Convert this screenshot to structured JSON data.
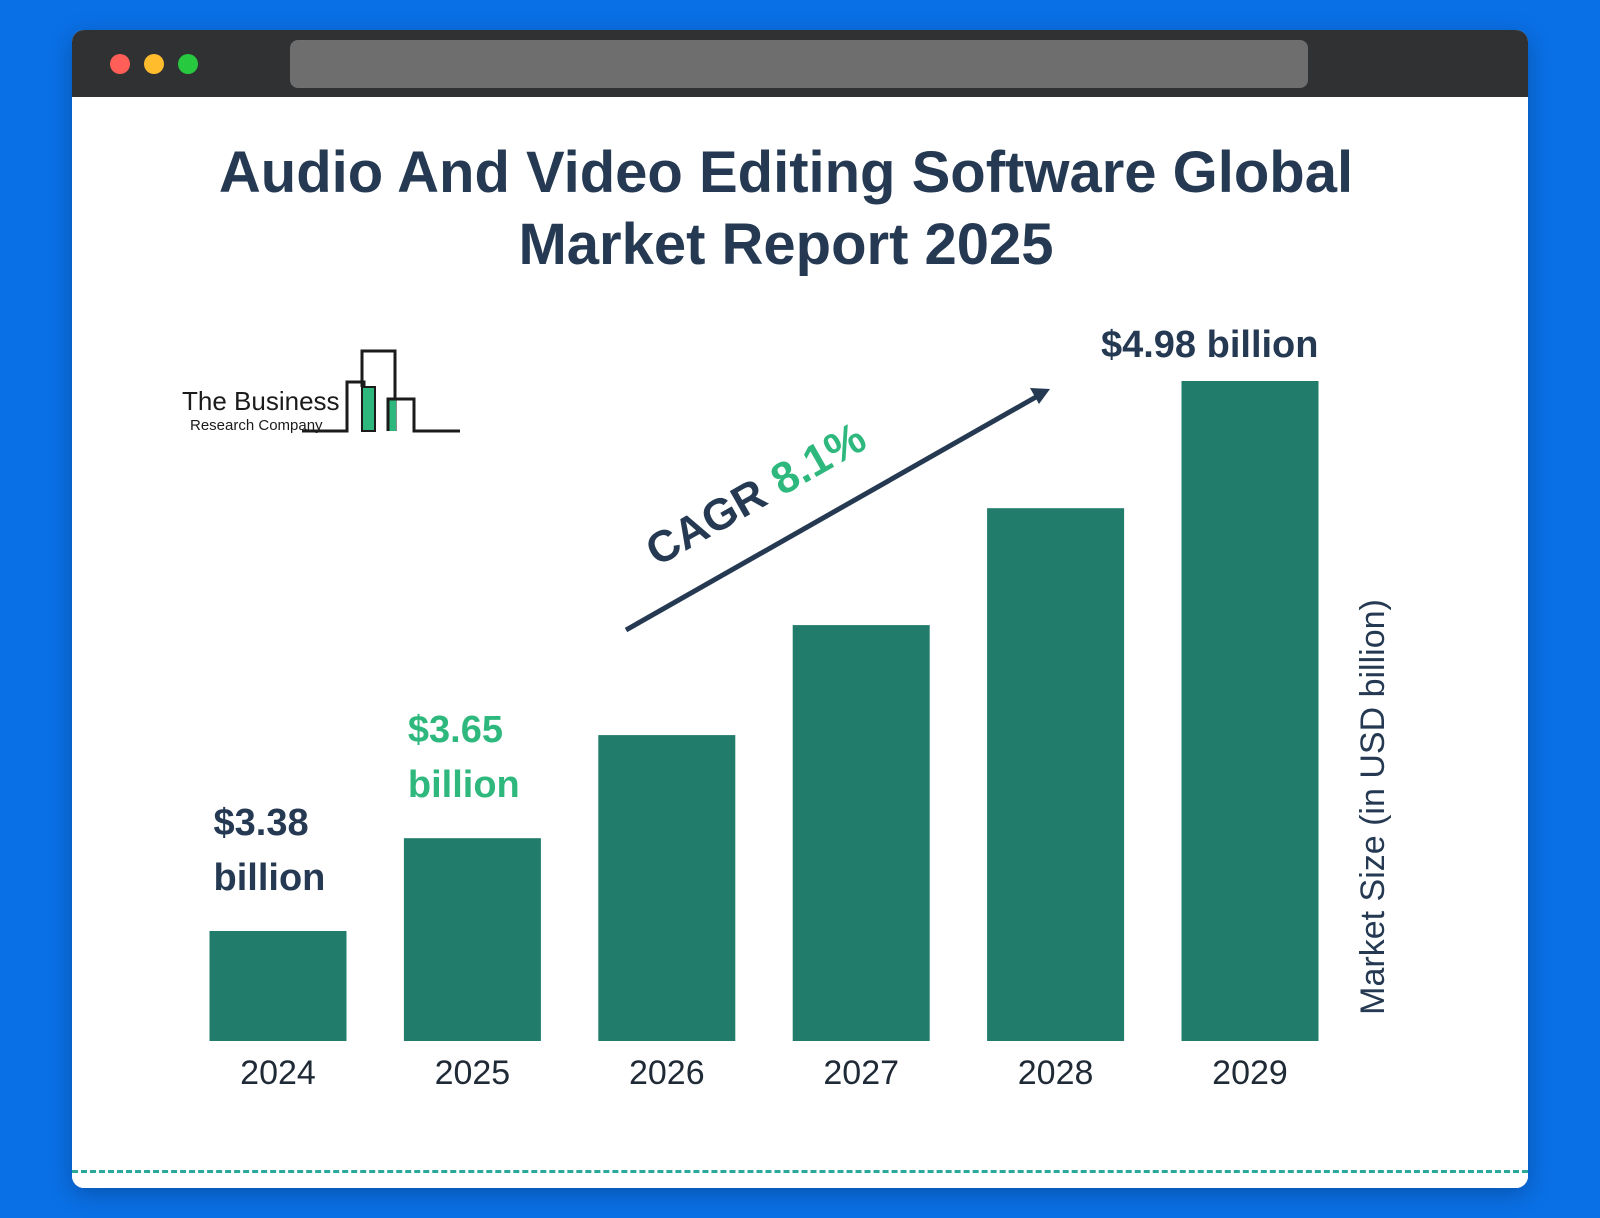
{
  "window": {
    "controls": [
      "close",
      "minimize",
      "maximize"
    ]
  },
  "colors": {
    "background": "#0a70e6",
    "bar": "#217c6c",
    "text_dark": "#253a52",
    "accent_green": "#2eb87d",
    "arrow": "#253a52"
  },
  "logo": {
    "line1": "The Business",
    "line2": "Research Company"
  },
  "cagr": {
    "label": "CAGR",
    "value": "8.1%"
  },
  "chart_data": {
    "type": "bar",
    "title": "Audio And Video Editing Software Global Market Report 2025",
    "title_lines": [
      "Audio And Video Editing Software Global",
      "Market Report 2025"
    ],
    "categories": [
      "2024",
      "2025",
      "2026",
      "2027",
      "2028",
      "2029"
    ],
    "values": [
      3.38,
      3.65,
      3.95,
      4.27,
      4.61,
      4.98
    ],
    "data_labels": [
      {
        "index": 0,
        "line1": "$3.38",
        "line2": "billion",
        "color": "#253a52"
      },
      {
        "index": 1,
        "line1": "$3.65",
        "line2": "billion",
        "color": "#2eb87d"
      },
      {
        "index": 5,
        "line1": "$4.98 billion",
        "line2": "",
        "color": "#253a52"
      }
    ],
    "xlabel": "",
    "ylabel": "Market Size (in USD billion)",
    "grid": false,
    "legend": "none"
  }
}
